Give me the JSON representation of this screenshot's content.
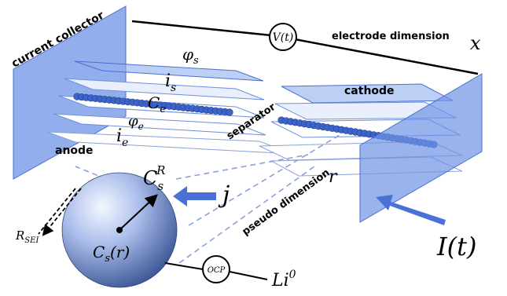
{
  "labels": {
    "current_collector": "current collector",
    "electrode_dimension": "electrode dimension",
    "electrode_axis_var": "x",
    "voltage": "V(t)",
    "cathode": "cathode",
    "anode": "anode",
    "separator": "separator",
    "pseudo_dimension": "pseudo dimension",
    "pseudo_axis_var": "r",
    "current": "I(t)",
    "phi_s": "φ",
    "phi_s_sub": "s",
    "i_s": "i",
    "i_s_sub": "s",
    "C_e": "C",
    "C_e_sub": "e",
    "phi_e": "φ",
    "phi_e_sub": "e",
    "i_e": "i",
    "i_e_sub": "e",
    "Cs_R": "C",
    "Cs_R_sub": "s",
    "Cs_R_sup": "R",
    "j": "j",
    "Cs_r": "C",
    "Cs_r_sub": "s",
    "Cs_r_arg": "(r)",
    "ocp": "OCP",
    "li": "Li",
    "li_sup": "0",
    "r_sei": "R",
    "r_sei_sub": "SEI"
  },
  "colors": {
    "plate_fill": "#6f93e6",
    "layer_fill": "#dbe6fb",
    "bead": "#3c64c8",
    "arrow_blue": "#4a72d6",
    "dashed": "#8aa2d8"
  }
}
